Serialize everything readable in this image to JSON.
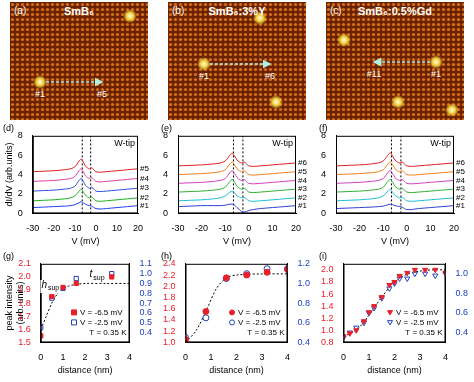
{
  "images": [
    {
      "panel": "(a)",
      "title": "SmB₆",
      "from": "#1",
      "to": "#5"
    },
    {
      "panel": "(b)",
      "title": "SmB₆:3%Y",
      "from": "#1",
      "to": "#6"
    },
    {
      "panel": "(c)",
      "title": "SmB₆:0.5%Gd",
      "from": "#1",
      "to": "#11"
    }
  ],
  "chart_data": [
    {
      "type": "line",
      "panel": "(d)",
      "xlabel": "V (mV)",
      "ylabel": "dI/dV (arb.units)",
      "annotation": "W-tip",
      "xlim": [
        -30,
        20
      ],
      "xticks": [
        -30,
        -20,
        -10,
        0,
        10,
        20
      ],
      "ylim": [
        0,
        8
      ],
      "yticks": [
        0,
        2,
        4,
        6,
        8
      ],
      "reference_lines": [
        -6.5,
        -2.5
      ],
      "x": [
        -30,
        -25,
        -20,
        -15,
        -12,
        -10,
        -8,
        -7,
        -6,
        -5,
        -4,
        -3,
        -2,
        -1,
        0,
        2,
        5,
        10,
        15,
        20
      ],
      "series": [
        {
          "name": "#1",
          "color": "#1f3fff",
          "values": [
            0.6,
            0.65,
            0.7,
            0.75,
            0.8,
            0.9,
            1.1,
            1.2,
            1.1,
            0.95,
            0.85,
            0.8,
            0.75,
            0.6,
            0.5,
            0.45,
            0.5,
            0.6,
            0.7,
            0.8
          ]
        },
        {
          "name": "#2",
          "color": "#20b020",
          "values": [
            1.3,
            1.35,
            1.4,
            1.5,
            1.6,
            1.8,
            2.3,
            2.5,
            2.2,
            1.9,
            1.7,
            1.6,
            1.7,
            1.5,
            1.3,
            1.25,
            1.3,
            1.4,
            1.5,
            1.6
          ]
        },
        {
          "name": "#3",
          "color": "#3050e0",
          "values": [
            2.3,
            2.35,
            2.4,
            2.5,
            2.6,
            2.8,
            3.4,
            3.6,
            3.3,
            2.9,
            2.7,
            2.6,
            2.7,
            2.5,
            2.3,
            2.25,
            2.3,
            2.4,
            2.5,
            2.6
          ]
        },
        {
          "name": "#4",
          "color": "#e040a0",
          "values": [
            3.3,
            3.35,
            3.4,
            3.5,
            3.6,
            3.8,
            4.4,
            4.6,
            4.3,
            3.9,
            3.7,
            3.6,
            3.7,
            3.5,
            3.3,
            3.25,
            3.3,
            3.4,
            3.5,
            3.6
          ]
        },
        {
          "name": "#5",
          "color": "#e02020",
          "values": [
            4.3,
            4.35,
            4.4,
            4.5,
            4.6,
            4.8,
            5.4,
            5.6,
            5.3,
            4.9,
            4.7,
            4.6,
            4.7,
            4.5,
            4.3,
            4.25,
            4.3,
            4.4,
            4.5,
            4.6
          ]
        }
      ]
    },
    {
      "type": "line",
      "panel": "(e)",
      "xlabel": "V (mV)",
      "annotation": "W-tip",
      "xlim": [
        -30,
        20
      ],
      "xticks": [
        -30,
        -20,
        -10,
        0,
        10,
        20
      ],
      "ylim": [
        0,
        8
      ],
      "yticks": [
        0,
        2,
        4,
        6,
        8
      ],
      "reference_lines": [
        -6.5,
        -2.5
      ],
      "x": [
        -30,
        -25,
        -20,
        -15,
        -12,
        -10,
        -8,
        -7,
        -6,
        -5,
        -4,
        -3,
        -2,
        -1,
        0,
        2,
        5,
        10,
        15,
        20
      ],
      "series": [
        {
          "name": "#1",
          "color": "#3040d0",
          "values": [
            0.7,
            0.75,
            0.8,
            0.8,
            0.8,
            0.85,
            0.95,
            0.95,
            0.85,
            0.6,
            0.4,
            0.2,
            0.15,
            0.2,
            0.3,
            0.4,
            0.5,
            0.6,
            0.7,
            0.8
          ]
        },
        {
          "name": "#2",
          "color": "#20c0d0",
          "values": [
            1.3,
            1.35,
            1.4,
            1.5,
            1.6,
            1.8,
            2.2,
            2.3,
            2.1,
            1.8,
            1.7,
            1.6,
            1.65,
            1.5,
            1.3,
            1.25,
            1.3,
            1.4,
            1.5,
            1.6
          ]
        },
        {
          "name": "#3",
          "color": "#30b030",
          "values": [
            2.2,
            2.25,
            2.3,
            2.4,
            2.5,
            2.7,
            3.3,
            3.5,
            3.2,
            2.8,
            2.6,
            2.5,
            2.6,
            2.4,
            2.2,
            2.15,
            2.2,
            2.3,
            2.4,
            2.5
          ]
        },
        {
          "name": "#4",
          "color": "#d040c0",
          "values": [
            3.1,
            3.15,
            3.2,
            3.3,
            3.4,
            3.6,
            4.2,
            4.4,
            4.1,
            3.7,
            3.5,
            3.4,
            3.5,
            3.3,
            3.1,
            3.05,
            3.1,
            3.2,
            3.3,
            3.4
          ]
        },
        {
          "name": "#5",
          "color": "#f08020",
          "values": [
            4.0,
            4.05,
            4.1,
            4.2,
            4.3,
            4.5,
            5.1,
            5.3,
            5.0,
            4.6,
            4.4,
            4.3,
            4.4,
            4.2,
            4.0,
            3.95,
            4.0,
            4.1,
            4.2,
            4.3
          ]
        },
        {
          "name": "#6",
          "color": "#e02020",
          "values": [
            4.9,
            4.95,
            5.0,
            5.1,
            5.2,
            5.4,
            6.0,
            6.2,
            5.9,
            5.5,
            5.3,
            5.2,
            5.3,
            5.1,
            4.9,
            4.85,
            4.9,
            5.0,
            5.1,
            5.2
          ]
        }
      ]
    },
    {
      "type": "line",
      "panel": "(f)",
      "xlabel": "V (mV)",
      "annotation": "W-tip",
      "xlim": [
        -30,
        20
      ],
      "xticks": [
        -30,
        -20,
        -10,
        0,
        10,
        20
      ],
      "ylim": [
        0,
        8
      ],
      "yticks": [
        0,
        2,
        4,
        6,
        8
      ],
      "reference_lines": [
        -6.5,
        -2.5
      ],
      "x": [
        -30,
        -25,
        -20,
        -15,
        -12,
        -10,
        -8,
        -7,
        -6,
        -5,
        -4,
        -3,
        -2,
        -1,
        0,
        2,
        5,
        10,
        15,
        20
      ],
      "series": [
        {
          "name": "#1",
          "color": "#3040d0",
          "values": [
            0.5,
            0.55,
            0.6,
            0.65,
            0.7,
            0.75,
            0.9,
            0.95,
            0.9,
            0.8,
            0.75,
            0.7,
            0.65,
            0.5,
            0.4,
            0.4,
            0.5,
            0.6,
            0.7,
            0.8
          ]
        },
        {
          "name": "#2",
          "color": "#20c0d0",
          "values": [
            1.3,
            1.35,
            1.4,
            1.5,
            1.6,
            1.8,
            2.3,
            2.45,
            2.2,
            1.85,
            1.7,
            1.6,
            1.65,
            1.5,
            1.3,
            1.25,
            1.3,
            1.4,
            1.5,
            1.6
          ]
        },
        {
          "name": "#3",
          "color": "#30b030",
          "values": [
            2.2,
            2.25,
            2.3,
            2.4,
            2.5,
            2.7,
            3.3,
            3.5,
            3.2,
            2.8,
            2.6,
            2.5,
            2.6,
            2.4,
            2.2,
            2.15,
            2.2,
            2.3,
            2.4,
            2.5
          ]
        },
        {
          "name": "#4",
          "color": "#d040c0",
          "values": [
            3.1,
            3.15,
            3.2,
            3.3,
            3.4,
            3.6,
            4.2,
            4.45,
            4.1,
            3.7,
            3.5,
            3.4,
            3.5,
            3.3,
            3.1,
            3.05,
            3.1,
            3.2,
            3.3,
            3.4
          ]
        },
        {
          "name": "#5",
          "color": "#f08020",
          "values": [
            4.0,
            4.05,
            4.1,
            4.2,
            4.3,
            4.5,
            5.1,
            5.3,
            5.0,
            4.6,
            4.4,
            4.3,
            4.4,
            4.2,
            4.0,
            3.95,
            4.0,
            4.1,
            4.2,
            4.3
          ]
        },
        {
          "name": "#6",
          "color": "#e02020",
          "values": [
            4.9,
            4.95,
            5.0,
            5.1,
            5.2,
            5.4,
            6.0,
            6.25,
            5.9,
            5.5,
            5.3,
            5.2,
            5.3,
            5.1,
            4.9,
            4.85,
            4.9,
            5.0,
            5.1,
            5.2
          ]
        }
      ]
    },
    {
      "type": "scatter",
      "panel": "(g)",
      "xlabel": "distance (nm)",
      "ylabel": "peak intensity (arb. units)",
      "annotation": "T = 0.35 K",
      "legend": "lower right",
      "xlim": [
        0,
        4
      ],
      "xticks": [
        0,
        1,
        2,
        3,
        4
      ],
      "ylim": [
        1.5,
        2.1
      ],
      "yticks": [
        1.5,
        1.6,
        1.7,
        1.8,
        1.9,
        {
          "value": 2,
          "label": "2.0"
        },
        2.1
      ],
      "y2lim": [
        0.3,
        1.1
      ],
      "y2ticks": [
        0.4,
        0.5,
        0.6,
        0.7,
        0.8,
        0.9,
        {
          "value": 1,
          "label": "1.0"
        },
        1.1
      ],
      "series": [
        {
          "name": "V = -6.5 mV",
          "color": "#e8202a",
          "marker": "square",
          "x": [
            0,
            0.5,
            1.0,
            1.6,
            3.2
          ],
          "values": [
            1.55,
            1.85,
            1.92,
            1.95,
            2.0
          ]
        },
        {
          "name": "V = -2.5 mV",
          "color": "#2040c0",
          "marker": "square_open",
          "axis": "y2",
          "x": [
            0,
            0.5,
            1.0,
            1.6,
            3.2
          ],
          "values": [
            0.45,
            0.75,
            0.85,
            0.95,
            1.0
          ]
        }
      ],
      "fit": {
        "color": "#000000",
        "line_style": "dotted",
        "x": [
          0,
          0.25,
          0.5,
          0.75,
          1,
          1.25,
          1.5,
          2,
          3,
          4
        ],
        "values": [
          1.6,
          1.7,
          1.8,
          1.87,
          1.91,
          1.93,
          1.94,
          1.95,
          1.95,
          1.95
        ]
      },
      "labels": [
        {
          "text": "t",
          "sub": "sup",
          "x": 2.2,
          "y": 1.98
        },
        {
          "text": "h",
          "sub": "sup",
          "x": 0.03,
          "y": 1.9
        }
      ]
    },
    {
      "type": "scatter",
      "panel": "(h)",
      "xlabel": "distance (nm)",
      "annotation": "T = 0.35 K",
      "legend": "lower right",
      "xlim": [
        0,
        4
      ],
      "xticks": [
        0,
        1,
        2,
        3,
        4
      ],
      "ylim": [
        1.0,
        2.4
      ],
      "yticks": [
        {
          "value": 1,
          "label": "1.0"
        },
        1.2,
        1.4,
        1.6,
        1.8,
        {
          "value": 2,
          "label": "2.0"
        },
        2.2,
        2.4
      ],
      "y2lim": [
        0.4,
        1.2
      ],
      "y2ticks": [
        0.4,
        0.6,
        0.8,
        {
          "value": 1,
          "label": "1.0"
        },
        1.2
      ],
      "series": [
        {
          "name": "V = -6.5 mV",
          "color": "#e8202a",
          "marker": "circle",
          "x": [
            0,
            0.8,
            1.6,
            2.4,
            3.2,
            4.0
          ],
          "values": [
            1.05,
            1.55,
            2.15,
            2.2,
            2.25,
            2.3
          ]
        },
        {
          "name": "V = -2.5 mV",
          "color": "#2040c0",
          "marker": "circle_open",
          "axis": "y2",
          "x": [
            0,
            0.8,
            1.6,
            2.4,
            3.2,
            4.0
          ],
          "values": [
            0.45,
            0.65,
            1.05,
            1.1,
            1.15,
            1.15
          ]
        }
      ],
      "fit": {
        "color": "#000000",
        "line_style": "dotted",
        "x": [
          0,
          0.4,
          0.8,
          1.2,
          1.6,
          2,
          3,
          4
        ],
        "values": [
          1.0,
          1.2,
          1.55,
          1.95,
          2.15,
          2.2,
          2.22,
          2.22
        ]
      }
    },
    {
      "type": "scatter",
      "panel": "(i)",
      "xlabel": "distance (nm)",
      "annotation": "T = 0.35 K",
      "legend": "lower right",
      "xlim": [
        0,
        4
      ],
      "xticks": [
        0,
        1,
        2,
        3,
        4
      ],
      "ylim": [
        0.8,
        2.1
      ],
      "yticks": [
        0.8,
        {
          "value": 1,
          "label": "1.0"
        },
        1.2,
        1.4,
        1.6,
        1.8,
        {
          "value": 2,
          "label": "2.0"
        }
      ],
      "y2lim": [
        0.3,
        1.1
      ],
      "y2ticks": [
        0.4,
        0.6,
        0.8,
        {
          "value": 1,
          "label": "1.0"
        }
      ],
      "series": [
        {
          "name": "V = -6.5 mV",
          "color": "#e8202a",
          "marker": "triangle_down",
          "x": [
            0,
            0.25,
            0.5,
            0.8,
            1.0,
            1.2,
            1.5,
            1.8,
            2.0,
            2.2,
            2.5,
            2.8,
            3.2,
            3.6,
            4.0
          ],
          "values": [
            0.9,
            0.95,
            1.0,
            1.15,
            1.3,
            1.4,
            1.55,
            1.75,
            1.8,
            1.9,
            1.95,
            2.0,
            2.0,
            2.0,
            1.95
          ]
        },
        {
          "name": "V = -2.5 mV",
          "color": "#2040c0",
          "marker": "triangle_down_open",
          "axis": "y2",
          "x": [
            0,
            0.25,
            0.5,
            0.8,
            1.0,
            1.2,
            1.5,
            1.8,
            2.0,
            2.2,
            2.5,
            2.8,
            3.2,
            3.6,
            4.0
          ],
          "values": [
            0.35,
            0.4,
            0.45,
            0.5,
            0.6,
            0.65,
            0.75,
            0.85,
            0.9,
            0.95,
            0.95,
            1.0,
            1.0,
            0.98,
            1.0
          ]
        }
      ],
      "fit": {
        "color": "#000000",
        "line_style": "dotted",
        "x": [
          0,
          0.5,
          1,
          1.5,
          2,
          2.5,
          3,
          3.5,
          4
        ],
        "values": [
          0.9,
          1.0,
          1.25,
          1.55,
          1.8,
          1.93,
          1.98,
          2.0,
          2.0
        ]
      }
    }
  ]
}
